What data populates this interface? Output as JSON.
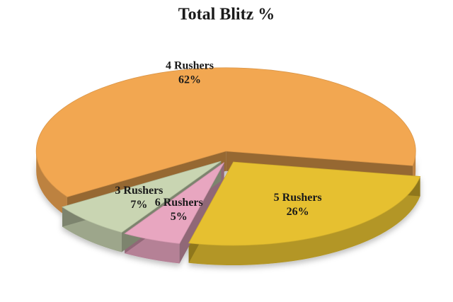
{
  "chart_data": {
    "type": "pie",
    "title": "Total Blitz %",
    "categories": [
      "4 Rushers",
      "5 Rushers",
      "6 Rushers",
      "3 Rushers"
    ],
    "values": [
      62,
      26,
      5,
      7
    ],
    "value_labels": [
      "62%",
      "26%",
      "5%",
      "7%"
    ],
    "colors": [
      "#f2a751",
      "#e6c030",
      "#e8a6c0",
      "#c9d5b2"
    ]
  }
}
